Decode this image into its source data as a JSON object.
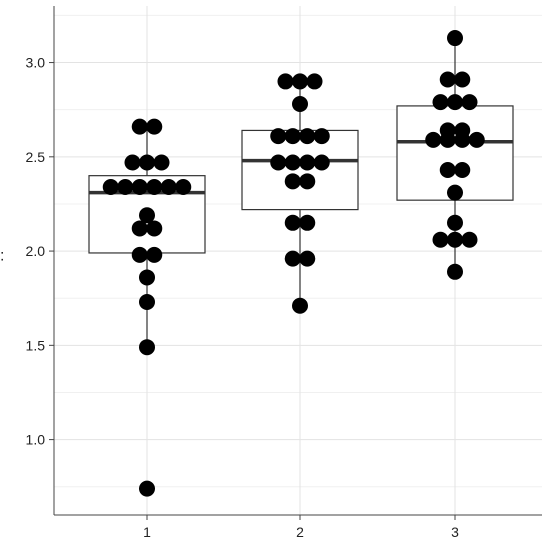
{
  "chart_data": {
    "type": "box",
    "subtype": "boxplot-with-dot-overlay",
    "ylabel": ":",
    "xlabel": "",
    "categories": [
      "1",
      "2",
      "3"
    ],
    "ylim": [
      0.6,
      3.3
    ],
    "yticks": [
      {
        "value": 1.0,
        "label": "1.0"
      },
      {
        "value": 1.5,
        "label": "1.5"
      },
      {
        "value": 2.0,
        "label": "2.0"
      },
      {
        "value": 2.5,
        "label": "2.5"
      },
      {
        "value": 3.0,
        "label": "3.0"
      }
    ],
    "grid": true,
    "boxes": [
      {
        "category": "1",
        "q1": 1.99,
        "median": 2.31,
        "q3": 2.4,
        "whisker_low": 1.49,
        "whisker_high": 2.66
      },
      {
        "category": "2",
        "q1": 2.22,
        "median": 2.48,
        "q3": 2.64,
        "whisker_low": 1.7,
        "whisker_high": 2.9
      },
      {
        "category": "3",
        "q1": 2.27,
        "median": 2.58,
        "q3": 2.77,
        "whisker_low": 1.89,
        "whisker_high": 3.13
      }
    ],
    "points": [
      {
        "category": "1",
        "rows": [
          {
            "y": 2.66,
            "n": 2
          },
          {
            "y": 2.47,
            "n": 3
          },
          {
            "y": 2.34,
            "n": 6
          },
          {
            "y": 2.19,
            "n": 1
          },
          {
            "y": 2.12,
            "n": 2
          },
          {
            "y": 1.98,
            "n": 2
          },
          {
            "y": 1.86,
            "n": 1
          },
          {
            "y": 1.73,
            "n": 1
          },
          {
            "y": 1.49,
            "n": 1
          },
          {
            "y": 0.74,
            "n": 1
          }
        ]
      },
      {
        "category": "2",
        "rows": [
          {
            "y": 2.9,
            "n": 3
          },
          {
            "y": 2.78,
            "n": 1
          },
          {
            "y": 2.61,
            "n": 4
          },
          {
            "y": 2.47,
            "n": 4
          },
          {
            "y": 2.37,
            "n": 2
          },
          {
            "y": 2.15,
            "n": 2
          },
          {
            "y": 1.96,
            "n": 2
          },
          {
            "y": 1.71,
            "n": 1
          }
        ]
      },
      {
        "category": "3",
        "rows": [
          {
            "y": 3.13,
            "n": 1
          },
          {
            "y": 2.91,
            "n": 2
          },
          {
            "y": 2.79,
            "n": 3
          },
          {
            "y": 2.64,
            "n": 2
          },
          {
            "y": 2.59,
            "n": 4
          },
          {
            "y": 2.43,
            "n": 2
          },
          {
            "y": 2.31,
            "n": 1
          },
          {
            "y": 2.15,
            "n": 1
          },
          {
            "y": 2.06,
            "n": 3
          },
          {
            "y": 1.89,
            "n": 1
          }
        ]
      }
    ],
    "colors": {
      "points": "#000000",
      "box_stroke": "#333333",
      "median": "#333333",
      "grid_major": "#e3e3e3",
      "grid_minor": "#f0f0f0",
      "axis": "#444444"
    }
  }
}
